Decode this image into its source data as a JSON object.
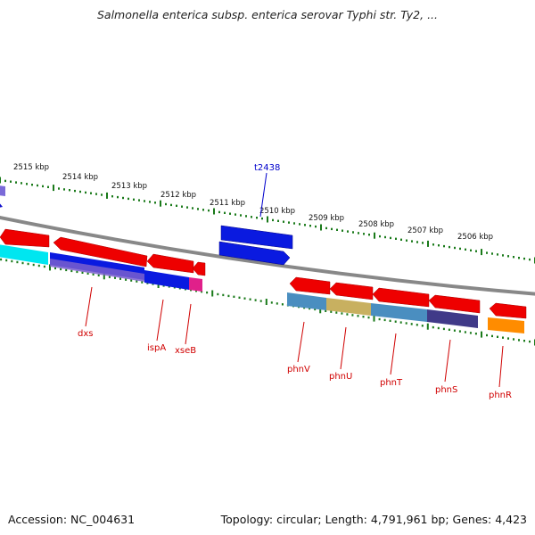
{
  "title": "Salmonella enterica subsp. enterica serovar Typhi str. Ty2, ...",
  "footer": {
    "accession": "Accession: NC_004631",
    "summary": "Topology: circular; Length: 4,791,961 bp; Genes: 4,423"
  },
  "colors": {
    "forward_gene": "#0000dd",
    "reverse_gene": "#ee0000",
    "backbone": "#888888",
    "tick": "#1a7a1a",
    "label": "#d00000",
    "blue_label": "#0000cc"
  },
  "tick_labels": [
    "2515 kbp",
    "2514 kbp",
    "2513 kbp",
    "2512 kbp",
    "2511 kbp",
    "2510 kbp",
    "2509 kbp",
    "2508 kbp",
    "2507 kbp",
    "2506 kbp"
  ],
  "gene_labels": [
    "dxs",
    "ispA",
    "xseB",
    "phnV",
    "phnU",
    "phnT",
    "phnS",
    "phnR"
  ],
  "blue_labels": [
    "t2438"
  ]
}
